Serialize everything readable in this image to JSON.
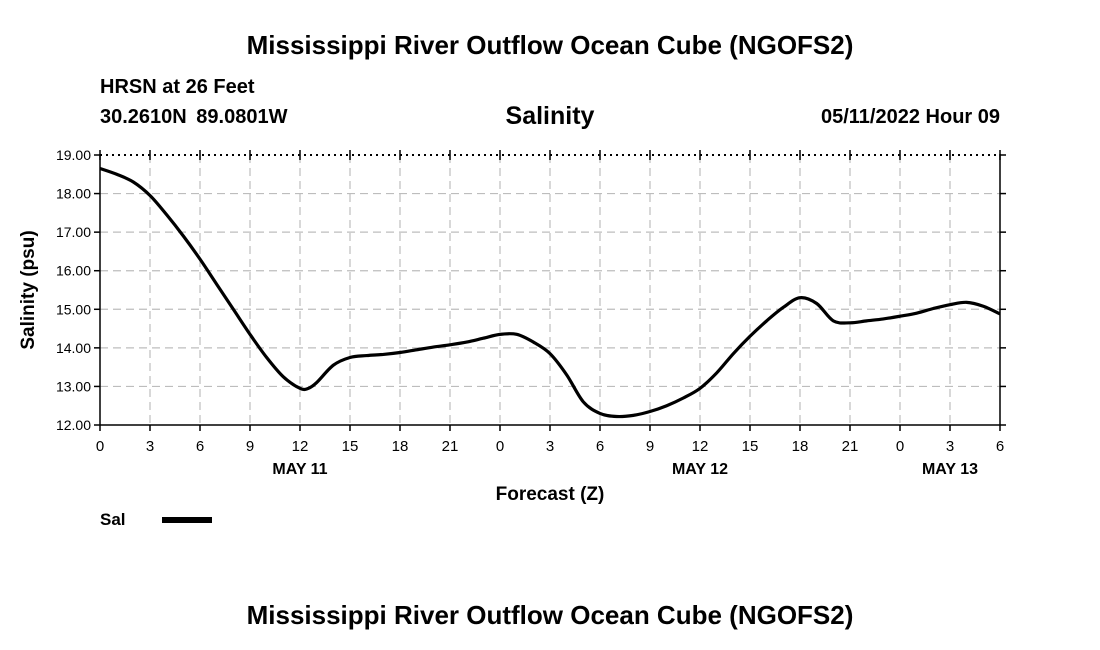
{
  "header": {
    "title": "Mississippi River Outflow Ocean Cube (NGOFS2)",
    "station": "HRSN at 26 Feet",
    "coords": "30.2610N  89.0801W",
    "datetime": "05/11/2022 Hour 09"
  },
  "footer": {
    "title": "Mississippi River Outflow Ocean Cube (NGOFS2)"
  },
  "legend": {
    "label": "Sal",
    "color": "#000000"
  },
  "chart_data": {
    "type": "line",
    "title": "Salinity",
    "xlabel": "Forecast (Z)",
    "ylabel": "Salinity (psu)",
    "xlim": [
      0,
      54
    ],
    "ylim": [
      12.0,
      19.0
    ],
    "grid": true,
    "x_ticks": [
      0,
      3,
      6,
      9,
      12,
      15,
      18,
      21,
      24,
      27,
      30,
      33,
      36,
      39,
      42,
      45,
      48,
      51,
      54
    ],
    "x_tick_labels": [
      "0",
      "3",
      "6",
      "9",
      "12",
      "15",
      "18",
      "21",
      "0",
      "3",
      "6",
      "9",
      "12",
      "15",
      "18",
      "21",
      "0",
      "3",
      "6"
    ],
    "y_ticks": [
      12,
      13,
      14,
      15,
      16,
      17,
      18,
      19
    ],
    "y_tick_labels": [
      "12.00",
      "13.00",
      "14.00",
      "15.00",
      "16.00",
      "17.00",
      "18.00",
      "19.00"
    ],
    "day_labels": [
      {
        "x": 12,
        "label": "MAY 11"
      },
      {
        "x": 36,
        "label": "MAY 12"
      },
      {
        "x": 51,
        "label": "MAY 13"
      }
    ],
    "series": [
      {
        "name": "Sal",
        "x": [
          0,
          1,
          2,
          3,
          4,
          5,
          6,
          7,
          8,
          9,
          10,
          11,
          12,
          12.5,
          13,
          14,
          15,
          16,
          17,
          18,
          19,
          20,
          21,
          22,
          23,
          24,
          25,
          26,
          27,
          28,
          29,
          30,
          31,
          32,
          33,
          34,
          35,
          36,
          37,
          38,
          39,
          40,
          41,
          42,
          43,
          44,
          45,
          46,
          47,
          48,
          49,
          50,
          51,
          52,
          53,
          54
        ],
        "values": [
          18.65,
          18.5,
          18.3,
          17.95,
          17.45,
          16.9,
          16.3,
          15.65,
          15.0,
          14.35,
          13.75,
          13.25,
          12.95,
          12.95,
          13.1,
          13.55,
          13.75,
          13.8,
          13.83,
          13.88,
          13.95,
          14.02,
          14.08,
          14.15,
          14.25,
          14.35,
          14.35,
          14.15,
          13.85,
          13.3,
          12.6,
          12.3,
          12.22,
          12.25,
          12.35,
          12.5,
          12.7,
          12.95,
          13.35,
          13.85,
          14.3,
          14.7,
          15.05,
          15.3,
          15.15,
          14.7,
          14.65,
          14.7,
          14.75,
          14.82,
          14.9,
          15.02,
          15.12,
          15.18,
          15.08,
          14.88
        ]
      }
    ]
  }
}
